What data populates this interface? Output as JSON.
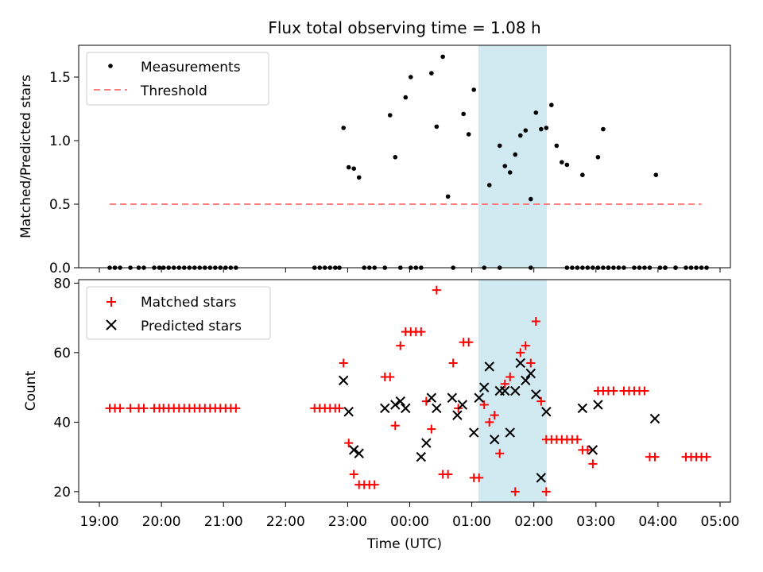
{
  "chart_data": [
    {
      "type": "scatter",
      "title": "Flux total observing time = 1.08 h",
      "xlabel": "",
      "ylabel": "Matched/Predicted stars",
      "xlim": [
        "18:40",
        "05:10"
      ],
      "ylim": [
        0,
        1.75
      ],
      "yticks": [
        "0.0",
        "0.5",
        "1.0",
        "1.5"
      ],
      "highlight_span": {
        "start": "01:07",
        "end": "02:12",
        "color": "#add8e6"
      },
      "legend_position": "upper-left",
      "series": [
        {
          "name": "Measurements",
          "marker": "dot",
          "color": "#000000",
          "points": [
            [
              "19:10",
              0
            ],
            [
              "19:15",
              0
            ],
            [
              "19:20",
              0
            ],
            [
              "19:30",
              0
            ],
            [
              "19:38",
              0
            ],
            [
              "19:43",
              0
            ],
            [
              "19:53",
              0
            ],
            [
              "19:58",
              0
            ],
            [
              "20:02",
              0
            ],
            [
              "20:07",
              0
            ],
            [
              "20:12",
              0
            ],
            [
              "20:17",
              0
            ],
            [
              "20:22",
              0
            ],
            [
              "20:27",
              0
            ],
            [
              "20:32",
              0
            ],
            [
              "20:37",
              0
            ],
            [
              "20:42",
              0
            ],
            [
              "20:47",
              0
            ],
            [
              "20:52",
              0
            ],
            [
              "20:57",
              0
            ],
            [
              "21:02",
              0
            ],
            [
              "21:07",
              0
            ],
            [
              "21:12",
              0
            ],
            [
              "22:28",
              0
            ],
            [
              "22:33",
              0
            ],
            [
              "22:38",
              0
            ],
            [
              "22:43",
              0
            ],
            [
              "22:48",
              0
            ],
            [
              "22:52",
              0
            ],
            [
              "22:56",
              1.1
            ],
            [
              "23:01",
              0.79
            ],
            [
              "23:06",
              0.78
            ],
            [
              "23:11",
              0.71
            ],
            [
              "23:16",
              0
            ],
            [
              "23:21",
              0
            ],
            [
              "23:26",
              0
            ],
            [
              "23:36",
              0
            ],
            [
              "23:41",
              1.2
            ],
            [
              "23:51",
              0
            ],
            [
              "23:46",
              0.87
            ],
            [
              "23:56",
              1.34
            ],
            [
              "00:01",
              1.5
            ],
            [
              "00:01",
              0
            ],
            [
              "00:06",
              0
            ],
            [
              "00:11",
              0
            ],
            [
              "00:21",
              1.53
            ],
            [
              "00:26",
              1.11
            ],
            [
              "00:32",
              1.66
            ],
            [
              "00:37",
              0.56
            ],
            [
              "00:42",
              0
            ],
            [
              "00:52",
              1.21
            ],
            [
              "00:57",
              1.05
            ],
            [
              "01:02",
              1.4
            ],
            [
              "01:12",
              0
            ],
            [
              "01:17",
              0.65
            ],
            [
              "01:27",
              0.96
            ],
            [
              "01:27",
              0
            ],
            [
              "01:32",
              0.8
            ],
            [
              "01:37",
              0.75
            ],
            [
              "01:42",
              0.89
            ],
            [
              "01:47",
              1.04
            ],
            [
              "01:52",
              1.08
            ],
            [
              "01:57",
              0.54
            ],
            [
              "01:57",
              0
            ],
            [
              "02:02",
              1.22
            ],
            [
              "02:07",
              1.09
            ],
            [
              "02:12",
              1.1
            ],
            [
              "02:17",
              1.28
            ],
            [
              "02:22",
              0.96
            ],
            [
              "02:27",
              0.83
            ],
            [
              "02:32",
              0.81
            ],
            [
              "02:32",
              0
            ],
            [
              "02:37",
              0
            ],
            [
              "02:42",
              0
            ],
            [
              "02:47",
              0
            ],
            [
              "02:52",
              0
            ],
            [
              "02:57",
              0
            ],
            [
              "03:02",
              0
            ],
            [
              "03:07",
              0
            ],
            [
              "03:12",
              0
            ],
            [
              "02:47",
              0.73
            ],
            [
              "03:02",
              0.87
            ],
            [
              "03:07",
              1.09
            ],
            [
              "03:12",
              0
            ],
            [
              "03:17",
              0
            ],
            [
              "03:22",
              0
            ],
            [
              "03:27",
              0
            ],
            [
              "03:37",
              0
            ],
            [
              "03:42",
              0
            ],
            [
              "03:47",
              0
            ],
            [
              "03:52",
              0
            ],
            [
              "04:02",
              0
            ],
            [
              "04:07",
              0
            ],
            [
              "04:17",
              0
            ],
            [
              "03:58",
              0.73
            ],
            [
              "04:07",
              0
            ],
            [
              "04:17",
              0
            ],
            [
              "04:27",
              0
            ],
            [
              "04:32",
              0
            ],
            [
              "04:37",
              0
            ],
            [
              "04:42",
              0
            ],
            [
              "04:47",
              0
            ]
          ]
        },
        {
          "name": "Threshold",
          "type": "line",
          "style": "dashed",
          "color": "#ff7f7f",
          "x": [
            "19:10",
            "04:42"
          ],
          "y": [
            0.5,
            0.5
          ]
        }
      ]
    },
    {
      "type": "scatter",
      "title": "",
      "xlabel": "Time (UTC)",
      "ylabel": "Count",
      "xlim": [
        "18:40",
        "05:10"
      ],
      "ylim": [
        17,
        81
      ],
      "yticks": [
        "20",
        "40",
        "60",
        "80"
      ],
      "xticks": [
        "19:00",
        "20:00",
        "21:00",
        "22:00",
        "23:00",
        "00:00",
        "01:00",
        "02:00",
        "03:00",
        "04:00",
        "05:00"
      ],
      "highlight_span": {
        "start": "01:07",
        "end": "02:12",
        "color": "#add8e6"
      },
      "legend_position": "upper-left",
      "series": [
        {
          "name": "Matched stars",
          "marker": "plus",
          "color": "#ff0000",
          "points": [
            [
              "19:10",
              44
            ],
            [
              "19:15",
              44
            ],
            [
              "19:20",
              44
            ],
            [
              "19:30",
              44
            ],
            [
              "19:38",
              44
            ],
            [
              "19:43",
              44
            ],
            [
              "19:53",
              44
            ],
            [
              "19:58",
              44
            ],
            [
              "20:02",
              44
            ],
            [
              "20:07",
              44
            ],
            [
              "20:12",
              44
            ],
            [
              "20:17",
              44
            ],
            [
              "20:22",
              44
            ],
            [
              "20:27",
              44
            ],
            [
              "20:32",
              44
            ],
            [
              "20:37",
              44
            ],
            [
              "20:42",
              44
            ],
            [
              "20:47",
              44
            ],
            [
              "20:52",
              44
            ],
            [
              "20:57",
              44
            ],
            [
              "21:02",
              44
            ],
            [
              "21:07",
              44
            ],
            [
              "21:12",
              44
            ],
            [
              "22:28",
              44
            ],
            [
              "22:33",
              44
            ],
            [
              "22:38",
              44
            ],
            [
              "22:43",
              44
            ],
            [
              "22:48",
              44
            ],
            [
              "22:52",
              44
            ],
            [
              "22:56",
              57
            ],
            [
              "23:01",
              34
            ],
            [
              "23:06",
              25
            ],
            [
              "23:11",
              22
            ],
            [
              "23:16",
              22
            ],
            [
              "23:21",
              22
            ],
            [
              "23:26",
              22
            ],
            [
              "23:36",
              53
            ],
            [
              "23:41",
              53
            ],
            [
              "23:46",
              39
            ],
            [
              "23:51",
              62
            ],
            [
              "23:56",
              66
            ],
            [
              "00:01",
              66
            ],
            [
              "00:06",
              66
            ],
            [
              "00:11",
              66
            ],
            [
              "00:16",
              46
            ],
            [
              "00:21",
              38
            ],
            [
              "00:26",
              78
            ],
            [
              "00:32",
              25
            ],
            [
              "00:37",
              25
            ],
            [
              "00:42",
              57
            ],
            [
              "00:47",
              44
            ],
            [
              "00:52",
              63
            ],
            [
              "00:57",
              63
            ],
            [
              "01:02",
              24
            ],
            [
              "01:07",
              24
            ],
            [
              "01:12",
              45
            ],
            [
              "01:17",
              40
            ],
            [
              "01:22",
              42
            ],
            [
              "01:27",
              31
            ],
            [
              "01:32",
              51
            ],
            [
              "01:37",
              53
            ],
            [
              "01:42",
              20
            ],
            [
              "01:47",
              60
            ],
            [
              "01:52",
              62
            ],
            [
              "01:57",
              57
            ],
            [
              "02:02",
              69
            ],
            [
              "02:07",
              46
            ],
            [
              "02:12",
              20
            ],
            [
              "02:12",
              35
            ],
            [
              "02:17",
              35
            ],
            [
              "02:22",
              35
            ],
            [
              "02:27",
              35
            ],
            [
              "02:32",
              35
            ],
            [
              "02:37",
              35
            ],
            [
              "02:42",
              35
            ],
            [
              "02:47",
              32
            ],
            [
              "02:52",
              32
            ],
            [
              "02:57",
              28
            ],
            [
              "03:02",
              49
            ],
            [
              "03:07",
              49
            ],
            [
              "03:12",
              49
            ],
            [
              "03:17",
              49
            ],
            [
              "03:27",
              49
            ],
            [
              "03:32",
              49
            ],
            [
              "03:37",
              49
            ],
            [
              "03:42",
              49
            ],
            [
              "03:47",
              49
            ],
            [
              "03:52",
              30
            ],
            [
              "03:57",
              30
            ],
            [
              "04:27",
              30
            ],
            [
              "04:32",
              30
            ],
            [
              "04:37",
              30
            ],
            [
              "04:42",
              30
            ],
            [
              "04:47",
              30
            ]
          ]
        },
        {
          "name": "Predicted stars",
          "marker": "x",
          "color": "#000000",
          "points": [
            [
              "22:56",
              52
            ],
            [
              "23:01",
              43
            ],
            [
              "23:06",
              32
            ],
            [
              "23:11",
              31
            ],
            [
              "23:36",
              44
            ],
            [
              "23:46",
              45
            ],
            [
              "23:51",
              46
            ],
            [
              "23:56",
              44
            ],
            [
              "00:11",
              30
            ],
            [
              "00:16",
              34
            ],
            [
              "00:21",
              47
            ],
            [
              "00:26",
              44
            ],
            [
              "00:41",
              47
            ],
            [
              "00:46",
              42
            ],
            [
              "00:51",
              45
            ],
            [
              "01:02",
              37
            ],
            [
              "01:07",
              47
            ],
            [
              "01:12",
              50
            ],
            [
              "01:17",
              56
            ],
            [
              "01:22",
              35
            ],
            [
              "01:27",
              49
            ],
            [
              "01:32",
              49
            ],
            [
              "01:37",
              37
            ],
            [
              "01:42",
              49
            ],
            [
              "01:47",
              57
            ],
            [
              "01:52",
              52
            ],
            [
              "01:57",
              54
            ],
            [
              "02:02",
              48
            ],
            [
              "02:07",
              24
            ],
            [
              "02:12",
              43
            ],
            [
              "02:47",
              44
            ],
            [
              "02:57",
              32
            ],
            [
              "03:02",
              45
            ],
            [
              "03:57",
              41
            ]
          ]
        }
      ]
    }
  ]
}
